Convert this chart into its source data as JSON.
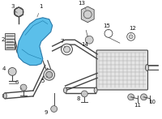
{
  "bg_color": "#ffffff",
  "line_color": "#444444",
  "highlight_color": "#5bbfea",
  "highlight_edge": "#2a7aaa",
  "gray_part": "#c8c8c8",
  "gray_edge": "#555555",
  "pipe_fill": "#e8e8e8",
  "muffler_fill": "#e0e0e0",
  "muffler_hatch": "#b0b0b0",
  "label_fs": 5.0,
  "label_color": "#111111"
}
